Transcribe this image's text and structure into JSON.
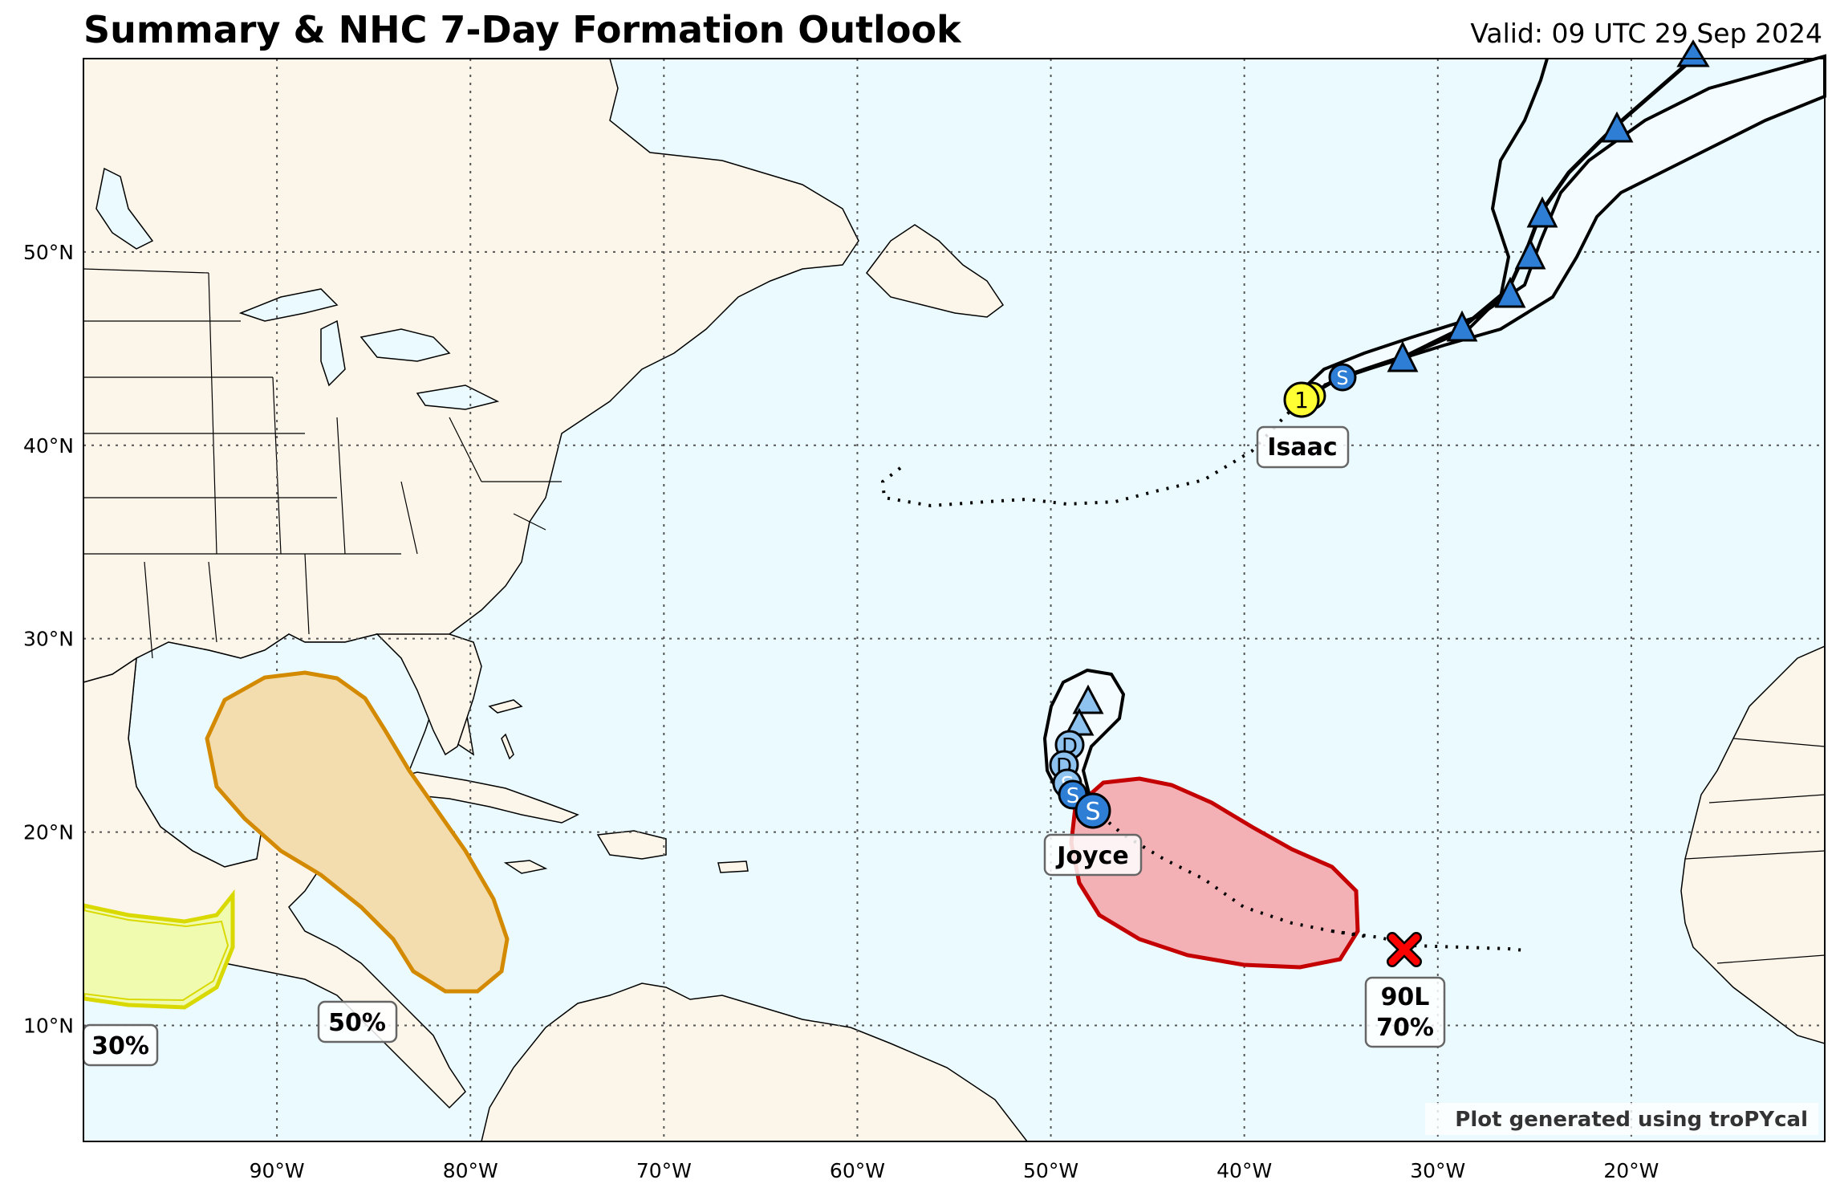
{
  "header": {
    "title": "Summary & NHC 7-Day Formation Outlook",
    "valid": "Valid: 09 UTC 29 Sep 2024"
  },
  "map": {
    "lon_range": [
      -100,
      -10
    ],
    "lat_range": [
      4,
      60
    ],
    "lon_ticks": [
      {
        "value": -90,
        "label": "90°W"
      },
      {
        "value": -80,
        "label": "80°W"
      },
      {
        "value": -70,
        "label": "70°W"
      },
      {
        "value": -60,
        "label": "60°W"
      },
      {
        "value": -50,
        "label": "50°W"
      },
      {
        "value": -40,
        "label": "40°W"
      },
      {
        "value": -30,
        "label": "30°W"
      },
      {
        "value": -20,
        "label": "20°W"
      }
    ],
    "lat_ticks": [
      {
        "value": 10,
        "label": "10°N"
      },
      {
        "value": 20,
        "label": "20°N"
      },
      {
        "value": 30,
        "label": "30°N"
      },
      {
        "value": 40,
        "label": "40°N"
      },
      {
        "value": 50,
        "label": "50°N"
      }
    ],
    "colors": {
      "ocean": "#eafaff",
      "land": "#fcf5e9",
      "border": "#000000",
      "storm_point": "#2e7ed6",
      "storm_point_light": "#8ec3f0",
      "hurricane": "#ffff33",
      "area_30": "#f0fbb0",
      "area_30_edge": "#d9d900",
      "area_50": "#f3ddaf",
      "area_50_edge": "#d48a00",
      "area_70": "#f3b1b6",
      "area_70_edge": "#c40000",
      "invest_x": "#ff0000"
    },
    "credit": "Plot generated using troPYcal"
  },
  "storms": {
    "isaac": {
      "name": "Isaac",
      "marker": "1",
      "s_marker": "S"
    },
    "joyce": {
      "name": "Joyce",
      "markers": [
        "S",
        "S",
        "D",
        "D",
        "S"
      ]
    }
  },
  "outlooks": {
    "area_30": {
      "label": "30%"
    },
    "area_50": {
      "label": "50%"
    },
    "invest_90l": {
      "id": "90L",
      "label": "70%"
    }
  }
}
